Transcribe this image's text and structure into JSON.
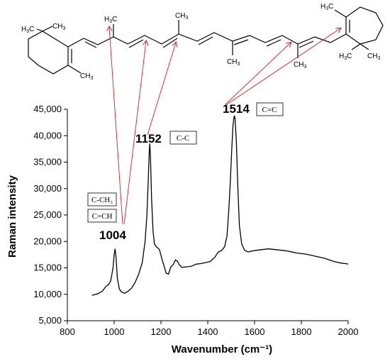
{
  "chart_data": {
    "type": "line",
    "xlabel": "Wavenumber (cm⁻¹)",
    "ylabel": "Raman intensity",
    "xlim": [
      800,
      2000
    ],
    "ylim": [
      5000,
      45000
    ],
    "x_ticks": [
      800,
      1000,
      1200,
      1400,
      1600,
      1800,
      2000
    ],
    "y_ticks": [
      5000,
      10000,
      15000,
      20000,
      25000,
      30000,
      35000,
      40000,
      45000
    ],
    "y_tick_labels": [
      "5,000",
      "10,000",
      "15,000",
      "20,000",
      "25,000",
      "30,000",
      "35,000",
      "40,000",
      "45,000"
    ],
    "grid": false,
    "line_color": "#000000",
    "arrow_color": "#cc2222",
    "series": [
      {
        "x": [
          905,
          930,
          950,
          965,
          975,
          985,
          995,
          1000,
          1004,
          1008,
          1014,
          1022,
          1032,
          1045,
          1060,
          1075,
          1090,
          1105,
          1120,
          1132,
          1140,
          1146,
          1150,
          1152,
          1155,
          1160,
          1166,
          1172,
          1180,
          1188,
          1194,
          1202,
          1212,
          1222,
          1232,
          1242,
          1252,
          1262,
          1270,
          1278,
          1290,
          1310,
          1330,
          1350,
          1370,
          1390,
          1410,
          1430,
          1445,
          1460,
          1472,
          1482,
          1490,
          1496,
          1502,
          1508,
          1512,
          1514,
          1517,
          1522,
          1528,
          1535,
          1545,
          1558,
          1572,
          1590,
          1620,
          1660,
          1700,
          1740,
          1780,
          1820,
          1860,
          1900,
          1940,
          1970,
          1990,
          2000
        ],
        "y": [
          9800,
          10100,
          10600,
          11500,
          11800,
          12500,
          15000,
          17500,
          18600,
          17000,
          13000,
          11000,
          10400,
          10200,
          10600,
          11200,
          12300,
          13800,
          16000,
          20000,
          25000,
          32000,
          37000,
          38500,
          36000,
          28000,
          22000,
          19500,
          19000,
          18700,
          18400,
          17000,
          15500,
          14000,
          13800,
          15200,
          15600,
          16500,
          16300,
          15600,
          15100,
          15200,
          15300,
          15700,
          15800,
          16000,
          16200,
          17000,
          18000,
          18300,
          19000,
          21000,
          26000,
          31000,
          37000,
          42000,
          43500,
          43800,
          43000,
          39000,
          31000,
          23000,
          19500,
          18300,
          18000,
          18200,
          18400,
          18600,
          18400,
          18200,
          17800,
          17600,
          17200,
          16800,
          16200,
          15900,
          15800,
          15700
        ]
      }
    ],
    "peaks": [
      {
        "x": 1004,
        "label": "1004",
        "assignments": [
          "C-CH₃",
          "C=CH"
        ]
      },
      {
        "x": 1152,
        "label": "1152",
        "assignments": [
          "C-C"
        ]
      },
      {
        "x": 1514,
        "label": "1514",
        "assignments": [
          "C=C"
        ]
      }
    ]
  },
  "molecule": {
    "atom_labels": {
      "methyl": "H₃C",
      "ch3": "CH₃"
    }
  }
}
